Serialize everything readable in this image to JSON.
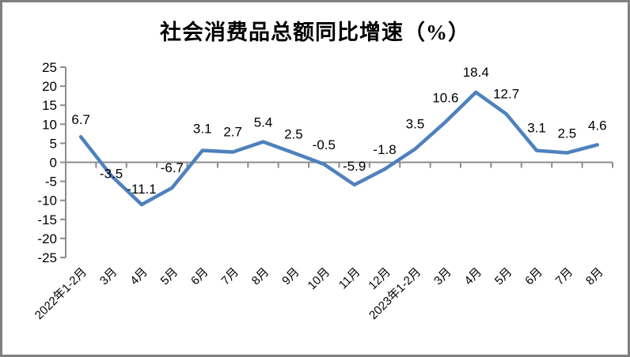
{
  "page": {
    "background_color": "#ffffff",
    "border_color": "#808080"
  },
  "chart_data": {
    "type": "line",
    "title": "社会消费品总额同比增速（%）",
    "categories": [
      "2022年1-2月",
      "3月",
      "4月",
      "5月",
      "6月",
      "7月",
      "8月",
      "9月",
      "10月",
      "11月",
      "12月",
      "2023年1-2月",
      "3月",
      "4月",
      "5月",
      "6月",
      "7月",
      "8月"
    ],
    "values": [
      6.7,
      -3.5,
      -11.1,
      -6.7,
      3.1,
      2.7,
      5.4,
      2.5,
      -0.5,
      -5.9,
      -1.8,
      3.5,
      10.6,
      18.4,
      12.7,
      3.1,
      2.5,
      4.6
    ],
    "yticks": [
      25,
      20,
      15,
      10,
      5,
      0,
      -5,
      -10,
      -15,
      -20,
      -25
    ],
    "ylim": [
      -25,
      25
    ],
    "xlabel": "",
    "ylabel": "",
    "grid": false,
    "legend": false,
    "data_labels_shown": true,
    "x_label_rotation_deg": -45,
    "line_color": "#4f81bd",
    "axis_color": "#8c8c8c",
    "text_color": "#000000",
    "label_dy": [
      22,
      3,
      20,
      26,
      28,
      26,
      25,
      24,
      25,
      24,
      25,
      32,
      31,
      26,
      26,
      29,
      25,
      25
    ]
  }
}
